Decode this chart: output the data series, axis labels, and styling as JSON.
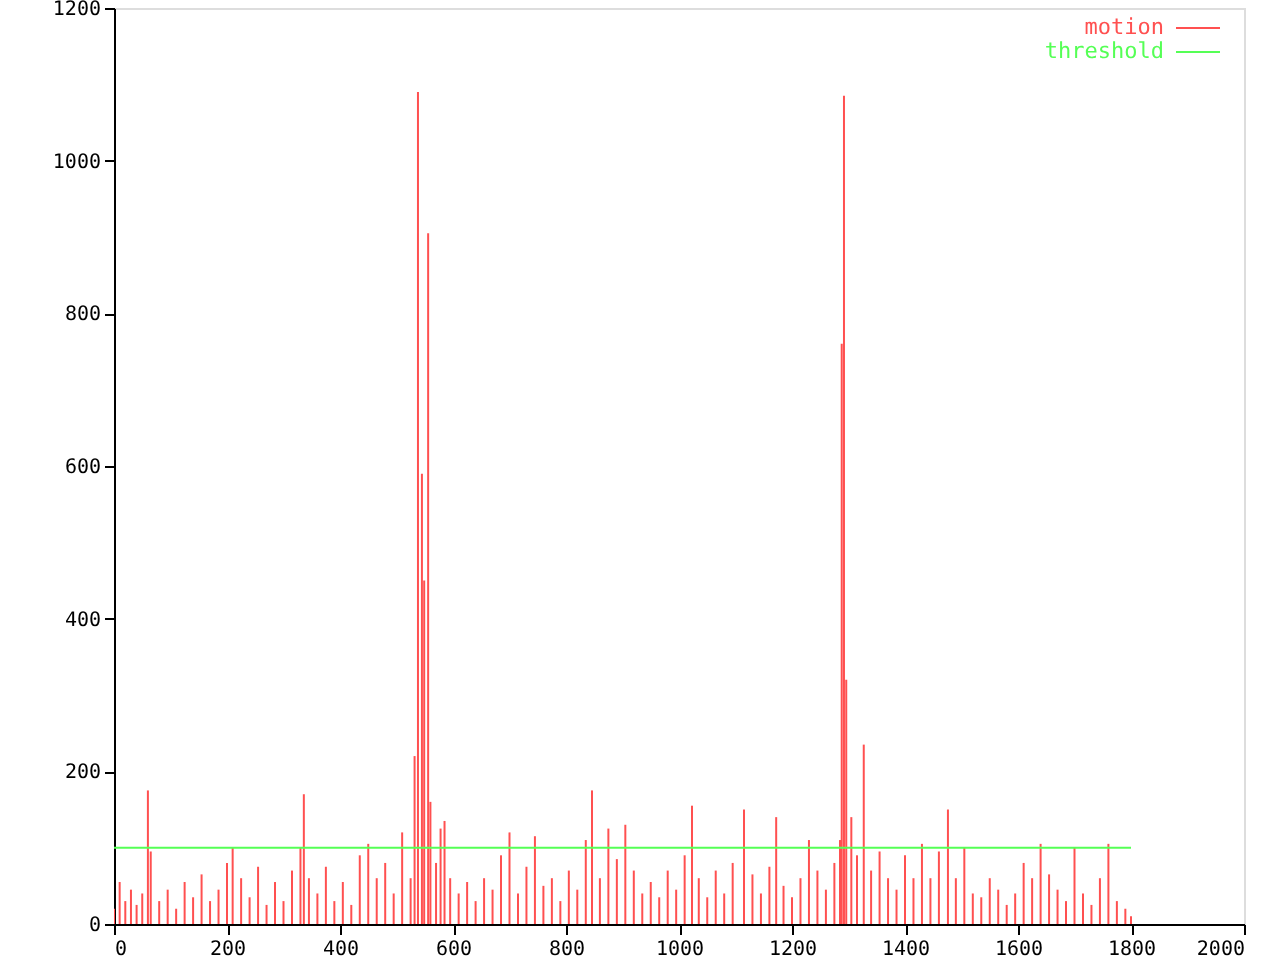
{
  "chart_data": {
    "type": "bar",
    "legend": "top right",
    "grid": false,
    "xlim": [
      0,
      2000
    ],
    "xticks": [
      0,
      200,
      400,
      600,
      800,
      1000,
      1200,
      1400,
      1600,
      1800,
      2000
    ],
    "ylim": [
      0,
      1200
    ],
    "yticks": [
      0,
      200,
      400,
      600,
      800,
      1000,
      1200
    ],
    "series": [
      {
        "name": "motion",
        "color": "#ff5050",
        "x": [
          0,
          10,
          20,
          30,
          40,
          50,
          60,
          65,
          80,
          95,
          110,
          125,
          140,
          155,
          170,
          185,
          200,
          210,
          225,
          240,
          255,
          270,
          285,
          300,
          315,
          330,
          336,
          345,
          360,
          375,
          390,
          405,
          420,
          435,
          450,
          465,
          480,
          495,
          510,
          525,
          532,
          538,
          545,
          549,
          556,
          560,
          570,
          578,
          585,
          595,
          610,
          625,
          640,
          655,
          670,
          685,
          700,
          715,
          730,
          745,
          760,
          775,
          790,
          805,
          820,
          835,
          846,
          860,
          875,
          890,
          905,
          920,
          935,
          950,
          965,
          980,
          995,
          1010,
          1023,
          1035,
          1050,
          1065,
          1080,
          1095,
          1115,
          1130,
          1145,
          1160,
          1172,
          1185,
          1200,
          1215,
          1230,
          1245,
          1260,
          1275,
          1285,
          1288,
          1292,
          1296,
          1305,
          1315,
          1327,
          1340,
          1355,
          1370,
          1385,
          1400,
          1415,
          1430,
          1445,
          1460,
          1476,
          1490,
          1505,
          1520,
          1535,
          1550,
          1565,
          1580,
          1595,
          1610,
          1625,
          1640,
          1655,
          1670,
          1685,
          1700,
          1715,
          1730,
          1745,
          1760,
          1775,
          1790,
          1800
        ],
        "values": [
          20,
          55,
          30,
          45,
          25,
          40,
          175,
          95,
          30,
          45,
          20,
          55,
          35,
          65,
          30,
          45,
          80,
          100,
          60,
          35,
          75,
          25,
          55,
          30,
          70,
          100,
          170,
          60,
          40,
          75,
          30,
          55,
          25,
          90,
          105,
          60,
          80,
          40,
          120,
          60,
          220,
          1090,
          590,
          450,
          905,
          160,
          80,
          125,
          135,
          60,
          40,
          55,
          30,
          60,
          45,
          90,
          120,
          40,
          75,
          115,
          50,
          60,
          30,
          70,
          45,
          110,
          175,
          60,
          125,
          85,
          130,
          70,
          40,
          55,
          35,
          70,
          45,
          90,
          155,
          60,
          35,
          70,
          40,
          80,
          150,
          65,
          40,
          75,
          140,
          50,
          35,
          60,
          110,
          70,
          45,
          80,
          110,
          760,
          1085,
          320,
          140,
          90,
          235,
          70,
          95,
          60,
          45,
          90,
          60,
          105,
          60,
          95,
          150,
          60,
          100,
          40,
          35,
          60,
          45,
          25,
          40,
          80,
          60,
          105,
          65,
          45,
          30,
          100,
          40,
          25,
          60,
          105,
          30,
          20,
          10
        ]
      },
      {
        "name": "threshold",
        "type": "line",
        "color": "#55ff55",
        "x": [
          0,
          1800
        ],
        "values": [
          100,
          100
        ]
      }
    ]
  }
}
